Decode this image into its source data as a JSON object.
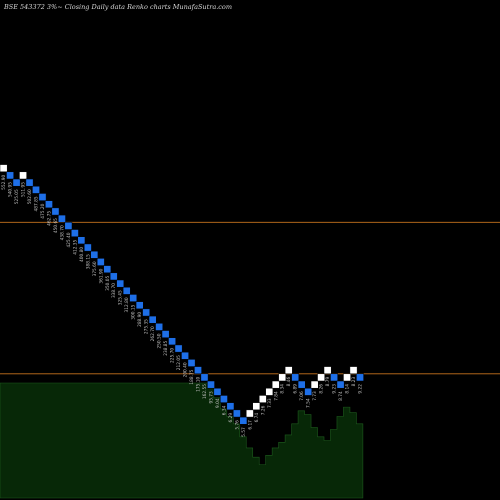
{
  "chart_data": {
    "type": "renko",
    "title": "BSE 543372  3%~  Closing Daily data  Renko  charts MunafaSutra.com",
    "xlabel": "",
    "ylabel": "",
    "grid": false,
    "reference_lines": [
      {
        "name": "upper",
        "value": 1000
      },
      {
        "name": "lower",
        "value": 580
      }
    ],
    "colors": {
      "up_brick": "#ffffff",
      "down_brick": "#1e6fe8",
      "reference_line": "#c8741e",
      "volume_fill": "#072807",
      "volume_stroke": "#1d5a1d",
      "label_text": "#c0c0c0",
      "background": "#000000"
    },
    "bricks": [
      {
        "dir": "up",
        "top": 1160
      },
      {
        "dir": "down",
        "top": 1140
      },
      {
        "dir": "down",
        "top": 1120
      },
      {
        "dir": "up",
        "top": 1140
      },
      {
        "dir": "down",
        "top": 1120
      },
      {
        "dir": "down",
        "top": 1100
      },
      {
        "dir": "down",
        "top": 1080
      },
      {
        "dir": "down",
        "top": 1060
      },
      {
        "dir": "down",
        "top": 1040
      },
      {
        "dir": "down",
        "top": 1020
      },
      {
        "dir": "down",
        "top": 1000
      },
      {
        "dir": "down",
        "top": 980
      },
      {
        "dir": "down",
        "top": 960
      },
      {
        "dir": "down",
        "top": 940
      },
      {
        "dir": "down",
        "top": 920
      },
      {
        "dir": "down",
        "top": 900
      },
      {
        "dir": "down",
        "top": 880
      },
      {
        "dir": "down",
        "top": 860
      },
      {
        "dir": "down",
        "top": 840
      },
      {
        "dir": "down",
        "top": 820
      },
      {
        "dir": "down",
        "top": 800
      },
      {
        "dir": "down",
        "top": 780
      },
      {
        "dir": "down",
        "top": 760
      },
      {
        "dir": "down",
        "top": 740
      },
      {
        "dir": "down",
        "top": 720
      },
      {
        "dir": "down",
        "top": 700
      },
      {
        "dir": "down",
        "top": 680
      },
      {
        "dir": "down",
        "top": 660
      },
      {
        "dir": "down",
        "top": 640
      },
      {
        "dir": "down",
        "top": 620
      },
      {
        "dir": "down",
        "top": 600
      },
      {
        "dir": "down",
        "top": 580
      },
      {
        "dir": "down",
        "top": 560
      },
      {
        "dir": "down",
        "top": 540
      },
      {
        "dir": "down",
        "top": 520
      },
      {
        "dir": "down",
        "top": 500
      },
      {
        "dir": "down",
        "top": 480
      },
      {
        "dir": "down",
        "top": 460
      },
      {
        "dir": "up",
        "top": 480
      },
      {
        "dir": "up",
        "top": 500
      },
      {
        "dir": "up",
        "top": 520
      },
      {
        "dir": "up",
        "top": 540
      },
      {
        "dir": "up",
        "top": 560
      },
      {
        "dir": "up",
        "top": 580
      },
      {
        "dir": "up",
        "top": 600
      },
      {
        "dir": "down",
        "top": 580
      },
      {
        "dir": "down",
        "top": 560
      },
      {
        "dir": "down",
        "top": 540
      },
      {
        "dir": "up",
        "top": 560
      },
      {
        "dir": "up",
        "top": 580
      },
      {
        "dir": "up",
        "top": 600
      },
      {
        "dir": "down",
        "top": 580
      },
      {
        "dir": "down",
        "top": 560
      },
      {
        "dir": "up",
        "top": 580
      },
      {
        "dir": "up",
        "top": 600
      },
      {
        "dir": "down",
        "top": 580
      }
    ],
    "brick_labels": [
      "552.90",
      "540.95",
      "525.05",
      "511.95",
      "502.60",
      "487.85",
      "475.20",
      "462.75",
      "450.65",
      "438.70",
      "425.40",
      "412.35",
      "400.80",
      "388.15",
      "375.60",
      "361.90",
      "350.05",
      "338.70",
      "325.45",
      "312.80",
      "300.15",
      "288.90",
      "275.35",
      "262.70",
      "250.50",
      "238.85",
      "225.70",
      "212.05",
      "200.40",
      "188.75",
      "175.10",
      "162.55",
      "95.73",
      "9.04",
      "6.34",
      "6.29",
      "5.76",
      "5.57",
      "6.17",
      "6.74",
      "7.26",
      "7.33",
      "7.84",
      "8.34",
      "8.46",
      "6.89",
      "7.06",
      "7.54",
      "7.73",
      "8.26",
      "8.79",
      "9.23",
      "8.74",
      "8.14",
      "8.23",
      "9.22"
    ],
    "volume": [
      0.62,
      0.62,
      0.62,
      0.62,
      0.62,
      0.62,
      0.62,
      0.62,
      0.62,
      0.62,
      0.62,
      0.62,
      0.62,
      0.62,
      0.62,
      0.62,
      0.62,
      0.62,
      0.62,
      0.62,
      0.62,
      0.62,
      0.62,
      0.62,
      0.62,
      0.62,
      0.62,
      0.62,
      0.62,
      0.62,
      0.62,
      0.62,
      0.62,
      0.54,
      0.48,
      0.44,
      0.4,
      0.33,
      0.27,
      0.22,
      0.18,
      0.23,
      0.27,
      0.3,
      0.34,
      0.4,
      0.47,
      0.45,
      0.38,
      0.33,
      0.31,
      0.37,
      0.44,
      0.49,
      0.46,
      0.4
    ]
  }
}
